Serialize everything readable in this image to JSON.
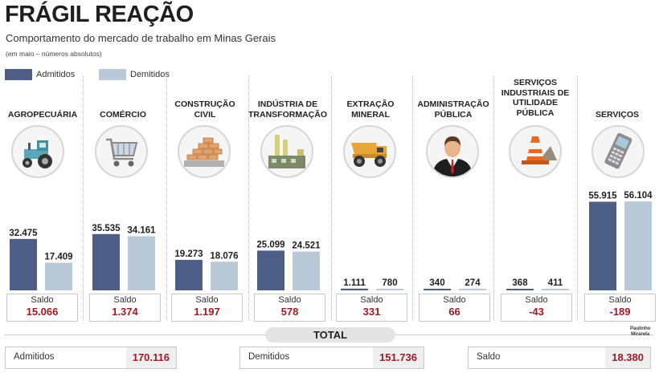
{
  "title": "FRÁGIL REAÇÃO",
  "subtitle": "Comportamento do mercado de trabalho em Minas Gerais",
  "note": "(em maio – números absolutos)",
  "legend": {
    "admitidos": "Admitidos",
    "demitidos": "Demitidos"
  },
  "colors": {
    "admitidos": "#4d5e87",
    "demitidos": "#b9c9d8",
    "saldo_value": "#a11a24"
  },
  "saldo_label": "Saldo",
  "chart_data": {
    "type": "bar",
    "title": "FRÁGIL REAÇÃO",
    "subtitle": "Comportamento do mercado de trabalho em Minas Gerais",
    "categories": [
      "AGROPECUÁRIA",
      "COMÉRCIO",
      "CONSTRUÇÃO CIVIL",
      "INDÚSTRIA DE TRANSFORMAÇÃO",
      "EXTRAÇÃO MINERAL",
      "ADMINISTRAÇÃO PÚBLICA",
      "SERVIÇOS INDUSTRIAIS DE UTILIDADE PÚBLICA",
      "SERVIÇOS"
    ],
    "series": [
      {
        "name": "Admitidos",
        "values": [
          32475,
          35535,
          19273,
          25099,
          1111,
          340,
          368,
          55915
        ]
      },
      {
        "name": "Demitidos",
        "values": [
          17409,
          34161,
          18076,
          24521,
          780,
          274,
          411,
          56104
        ]
      }
    ],
    "value_labels": {
      "Admitidos": [
        "32.475",
        "35.535",
        "19.273",
        "25.099",
        "1.111",
        "340",
        "368",
        "55.915"
      ],
      "Demitidos": [
        "17.409",
        "34.161",
        "18.076",
        "24.521",
        "780",
        "274",
        "411",
        "56.104"
      ]
    },
    "saldo": [
      "15.066",
      "1.374",
      "1.197",
      "578",
      "331",
      "66",
      "-43",
      "-189"
    ],
    "ylim": [
      0,
      60000
    ],
    "legend_position": "top-left"
  },
  "sectors": [
    {
      "label_lines": [
        "AGROPECUÁRIA"
      ],
      "icon": "tractor-icon"
    },
    {
      "label_lines": [
        "COMÉRCIO"
      ],
      "icon": "shopping-cart-icon"
    },
    {
      "label_lines": [
        "CONSTRUÇÃO",
        "CIVIL"
      ],
      "icon": "brick-wall-icon"
    },
    {
      "label_lines": [
        "INDÚSTRIA DE",
        "TRANSFORMAÇÃO"
      ],
      "icon": "factory-icon"
    },
    {
      "label_lines": [
        "EXTRAÇÃO",
        "MINERAL"
      ],
      "icon": "dump-truck-icon"
    },
    {
      "label_lines": [
        "ADMINISTRAÇÃO",
        "PÚBLICA"
      ],
      "icon": "businessman-icon"
    },
    {
      "label_lines": [
        "SERVIÇOS",
        "INDUSTRIAIS DE",
        "UTILIDADE",
        "PÚBLICA"
      ],
      "icon": "traffic-cone-icon"
    },
    {
      "label_lines": [
        "SERVIÇOS"
      ],
      "icon": "mobile-phone-icon"
    }
  ],
  "total": {
    "label": "TOTAL",
    "admitidos_label": "Admitidos",
    "admitidos_value": "170.116",
    "demitidos_label": "Demitidos",
    "demitidos_value": "151.736",
    "saldo_label": "Saldo",
    "saldo_value": "18.380"
  },
  "credit": [
    "Paulinho",
    "Miranda"
  ]
}
